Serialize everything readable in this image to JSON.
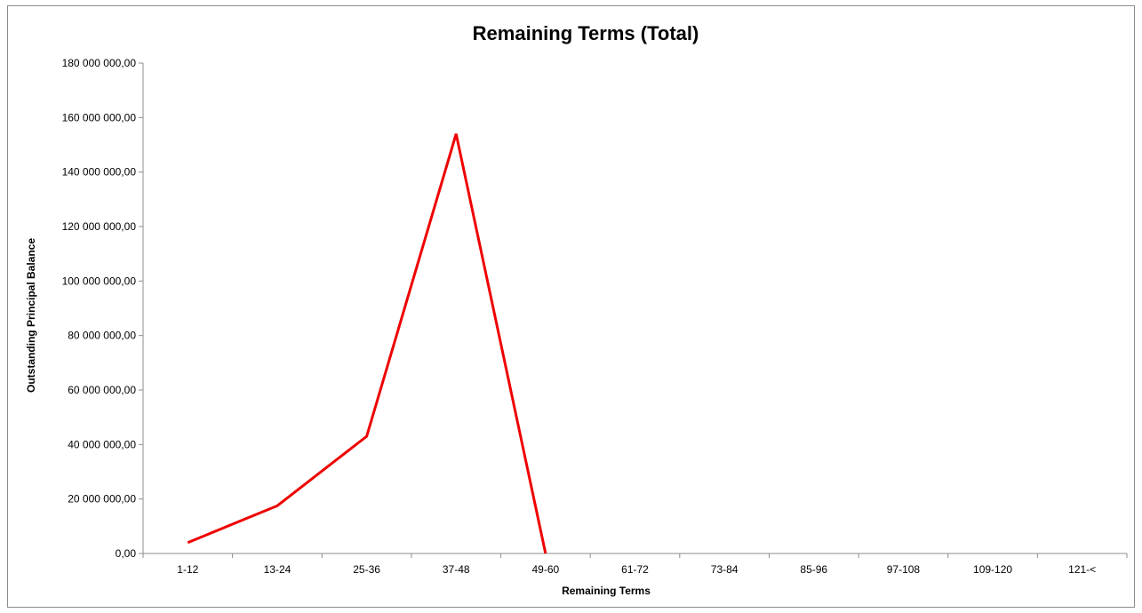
{
  "chart_data": {
    "type": "line",
    "title": "Remaining Terms (Total)",
    "xlabel": "Remaining Terms",
    "ylabel": "Outstanding Principal Balance",
    "categories": [
      "1-12",
      "13-24",
      "25-36",
      "37-48",
      "49-60",
      "61-72",
      "73-84",
      "85-96",
      "97-108",
      "109-120",
      "121-<"
    ],
    "series": [
      {
        "values": [
          4000000,
          17500000,
          43000000,
          154000000,
          0,
          null,
          null,
          null,
          null,
          null,
          null
        ],
        "color": "#ee0000"
      }
    ],
    "ylim": [
      0,
      180000000
    ],
    "yticks": [
      0,
      20000000,
      40000000,
      60000000,
      80000000,
      100000000,
      120000000,
      140000000,
      160000000,
      180000000
    ],
    "ytick_labels": [
      "0,00",
      "20 000 000,00",
      "40 000 000,00",
      "60 000 000,00",
      "80 000 000,00",
      "100 000 000,00",
      "120 000 000,00",
      "140 000 000,00",
      "160 000 000,00",
      "180 000 000,00"
    ],
    "grid": false,
    "legend": "none"
  }
}
